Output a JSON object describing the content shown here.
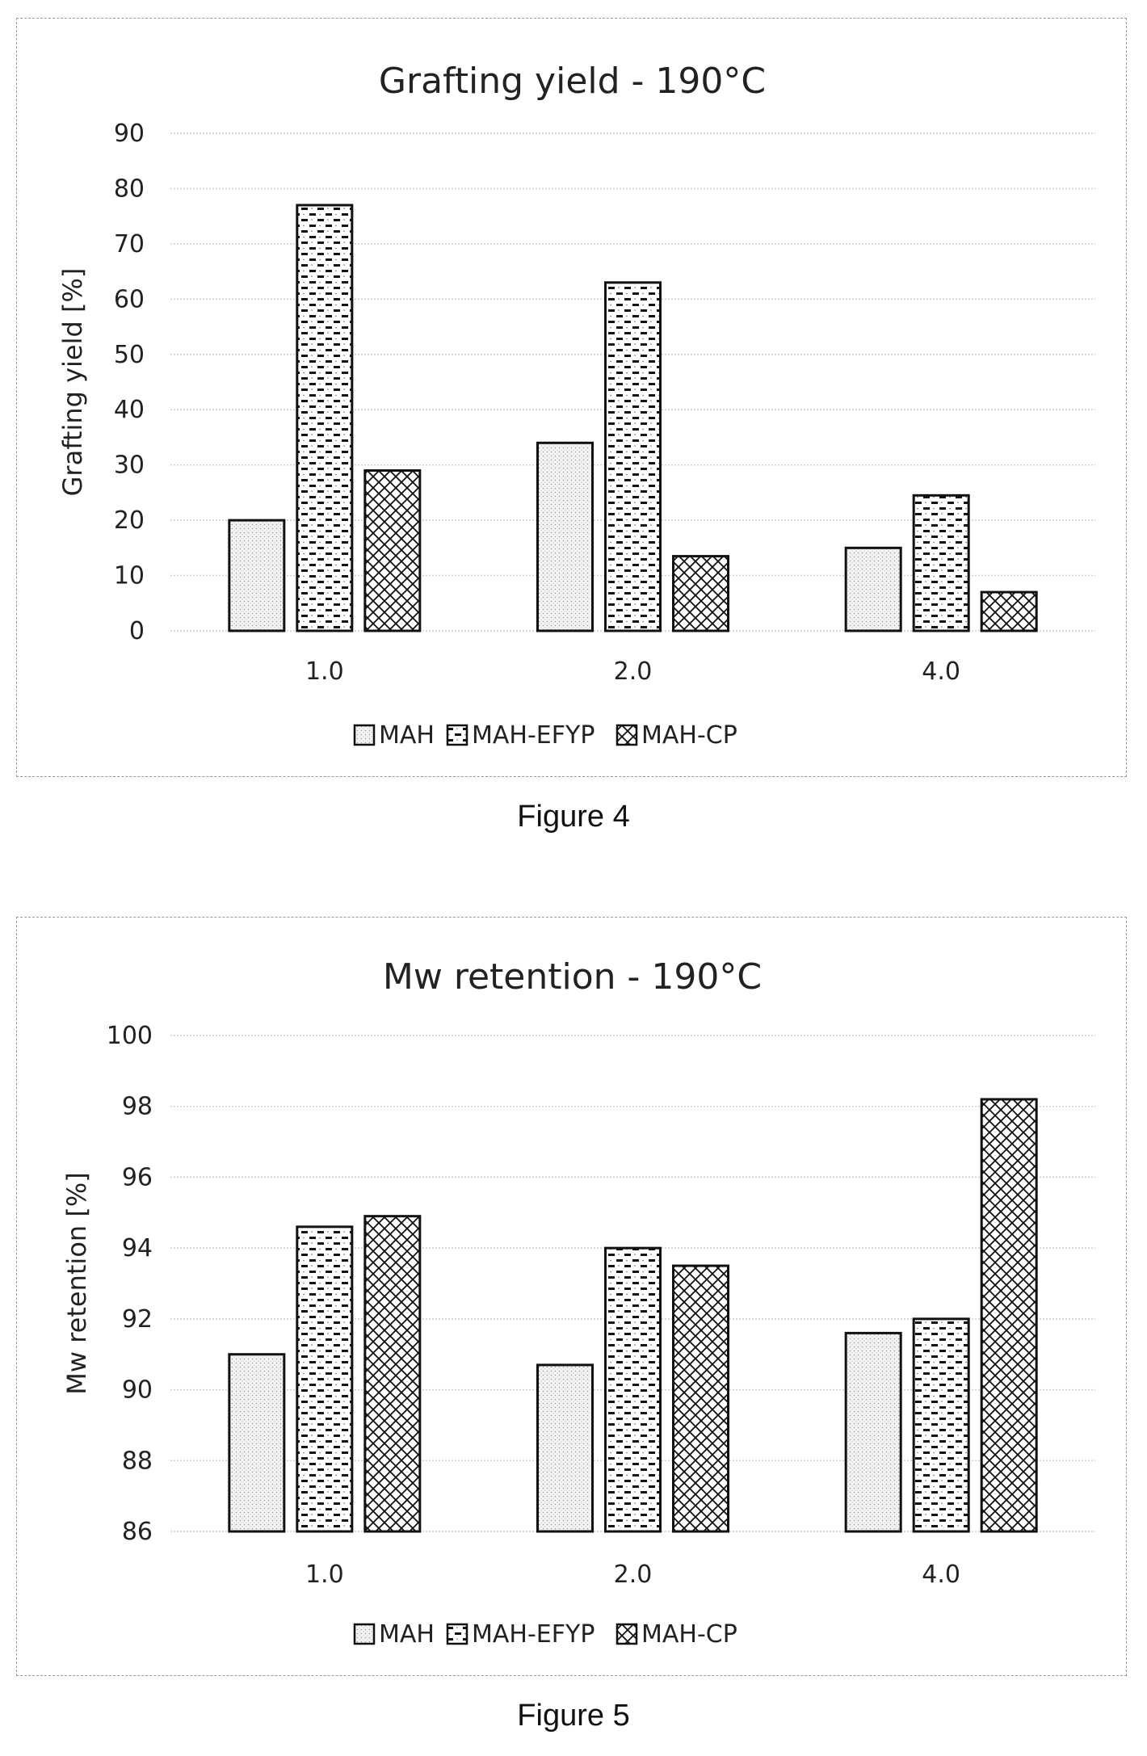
{
  "chart_data": [
    {
      "type": "bar",
      "title": "Grafting yield - 190°C",
      "xlabel": "",
      "ylabel": "Grafting yield [%]",
      "categories": [
        "1.0",
        "2.0",
        "4.0"
      ],
      "ylim": [
        0,
        90
      ],
      "yticks": [
        0,
        10,
        20,
        30,
        40,
        50,
        60,
        70,
        80,
        90
      ],
      "grid": true,
      "legend_position": "bottom",
      "series": [
        {
          "name": "MAH",
          "values": [
            20,
            34,
            15
          ],
          "pattern": "dots"
        },
        {
          "name": "MAH-EFYP",
          "values": [
            77,
            63,
            24.5
          ],
          "pattern": "dashes"
        },
        {
          "name": "MAH-CP",
          "values": [
            29,
            13.5,
            7
          ],
          "pattern": "crosshatch"
        }
      ]
    },
    {
      "type": "bar",
      "title": "Mw retention - 190°C",
      "xlabel": "",
      "ylabel": "Mw retention [%]",
      "categories": [
        "1.0",
        "2.0",
        "4.0"
      ],
      "ylim": [
        86,
        100
      ],
      "yticks": [
        86,
        88,
        90,
        92,
        94,
        96,
        98,
        100
      ],
      "grid": true,
      "legend_position": "bottom",
      "series": [
        {
          "name": "MAH",
          "values": [
            91.0,
            90.7,
            91.6
          ],
          "pattern": "dots"
        },
        {
          "name": "MAH-EFYP",
          "values": [
            94.6,
            94.0,
            92.0
          ],
          "pattern": "dashes"
        },
        {
          "name": "MAH-CP",
          "values": [
            94.9,
            93.5,
            98.2
          ],
          "pattern": "crosshatch"
        }
      ]
    }
  ],
  "captions": [
    "Figure 4",
    "Figure 5"
  ]
}
